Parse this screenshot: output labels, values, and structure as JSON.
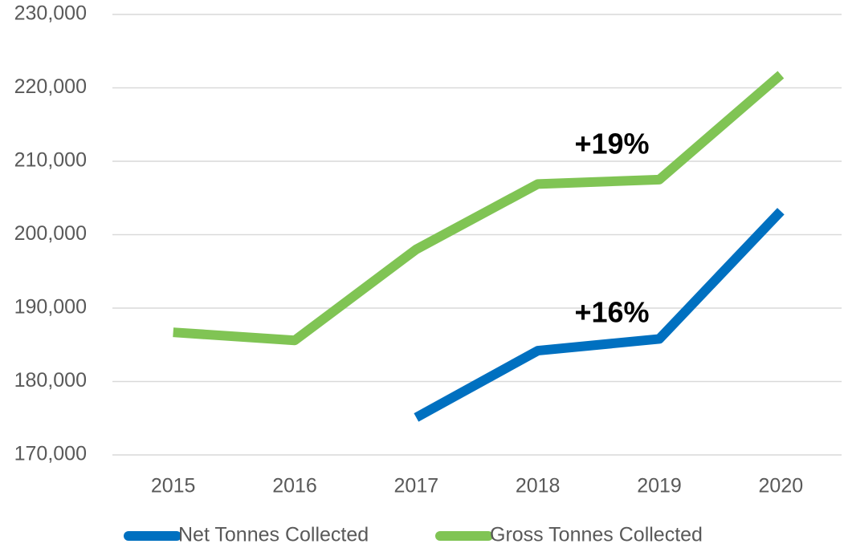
{
  "chart_data": {
    "type": "line",
    "categories": [
      "2015",
      "2016",
      "2017",
      "2018",
      "2019",
      "2020"
    ],
    "series": [
      {
        "name": "Net Tonnes Collected",
        "color": "#0070c0",
        "values": [
          null,
          null,
          175100,
          184200,
          185800,
          203200
        ]
      },
      {
        "name": "Gross Tonnes Collected",
        "color": "#80c454",
        "values": [
          186700,
          185600,
          198000,
          206900,
          207500,
          221800
        ]
      }
    ],
    "ylim": [
      170000,
      230000
    ],
    "yticks": [
      {
        "value": 170000,
        "label": "170,000"
      },
      {
        "value": 180000,
        "label": "180,000"
      },
      {
        "value": 190000,
        "label": "190,000"
      },
      {
        "value": 200000,
        "label": "200,000"
      },
      {
        "value": 210000,
        "label": "210,000"
      },
      {
        "value": 220000,
        "label": "220,000"
      },
      {
        "value": 230000,
        "label": "230,000"
      }
    ],
    "annotations": [
      "+19%",
      "+16%"
    ],
    "grid": true,
    "legend": "bottom"
  }
}
